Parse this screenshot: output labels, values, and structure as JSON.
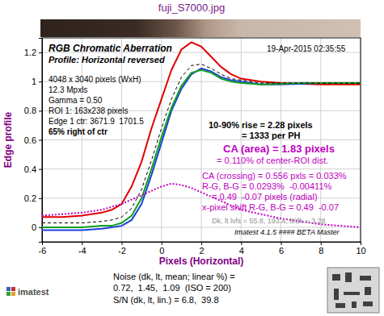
{
  "chart_data": {
    "type": "line",
    "title": "fuji_S7000.jpg",
    "x_label": "Pixels (Horizontal)",
    "y_label": "Edge profile",
    "x": [
      -6,
      -5,
      -4,
      -3,
      -2.5,
      -2,
      -1.5,
      -1,
      -0.5,
      0,
      0.5,
      1,
      1.5,
      2,
      2.5,
      3,
      3.5,
      4,
      5,
      6,
      7,
      8,
      9,
      10
    ],
    "series": [
      {
        "color": "#e00000",
        "line_style": "solid",
        "values": [
          0.07,
          0.07,
          0.08,
          0.1,
          0.12,
          0.16,
          0.28,
          0.45,
          0.68,
          0.88,
          1.08,
          1.22,
          1.27,
          1.24,
          1.17,
          1.1,
          1.05,
          1.02,
          1.0,
          0.99,
          0.985,
          0.98,
          0.98,
          0.98
        ]
      },
      {
        "color": "#2040e0",
        "line_style": "solid",
        "values": [
          -0.02,
          -0.02,
          -0.02,
          -0.01,
          0,
          0.01,
          0.05,
          0.16,
          0.36,
          0.58,
          0.8,
          0.95,
          1.05,
          1.09,
          1.07,
          1.03,
          1.01,
          1.0,
          0.98,
          0.98,
          0.985,
          0.99,
          0.99,
          0.99
        ]
      },
      {
        "color": "#10a020",
        "line_style": "solid",
        "values": [
          0,
          0,
          0,
          0.01,
          0.01,
          0.03,
          0.08,
          0.2,
          0.4,
          0.62,
          0.82,
          0.97,
          1.06,
          1.08,
          1.06,
          1.02,
          1.0,
          0.99,
          0.98,
          0.985,
          0.99,
          0.99,
          0.99,
          0.99
        ]
      },
      {
        "color": "#000000",
        "line_style": "dashed",
        "values": [
          0.03,
          0.03,
          0.03,
          0.04,
          0.05,
          0.07,
          0.13,
          0.26,
          0.46,
          0.68,
          0.88,
          1.03,
          1.11,
          1.12,
          1.09,
          1.05,
          1.02,
          1.01,
          0.99,
          0.99,
          0.99,
          0.99,
          0.99,
          0.99
        ]
      },
      {
        "color": "#c000c0",
        "line_style": "dotted",
        "values": [
          0.08,
          0.09,
          0.1,
          0.12,
          0.14,
          0.16,
          0.19,
          0.22,
          0.25,
          0.28,
          0.3,
          0.29,
          0.27,
          0.24,
          0.21,
          0.18,
          0.15,
          0.12,
          0.09,
          0.06,
          0.04,
          0.02,
          0.01,
          0
        ]
      }
    ],
    "xlim": [
      -6,
      10
    ],
    "ylim": [
      -0.1,
      1.3
    ],
    "xticks": [
      -6,
      -4,
      -2,
      0,
      2,
      4,
      6,
      8,
      10
    ],
    "yticks": [
      0,
      0.2,
      0.4,
      0.6,
      0.8,
      1,
      1.2
    ],
    "grid": true,
    "annotations": [
      "RGB Chromatic Aberration",
      "Profile: Horizontal reversed",
      "19-Apr-2015 02:35:55",
      "4048 x 3040 pixels (WxH)",
      "12.3 Mpxls",
      "Gamma = 0.50",
      "ROI 1: 163x238 pixels",
      "Edge 1 ctr: 3671.9  1701.5",
      "65% right of ctr",
      "10-90% rise = 2.28 pixels",
      "= 1333 per PH",
      "CA (area) = 1.83 pixels",
      "= 0.110% of center-ROI dist.",
      "CA (crossing) = 0.556 pxls = 0.033%",
      "R-G, B-G = 0.0293%  -0.00411%",
      "= 0.49  -0.07 pixels (radial)",
      "x-pixel shift R-G, B-G = 0.49  -0.07",
      "Dk, lt lvls = 55.8, 193.4; lt/dk = 3.28",
      "Imatest 4.1.5 #### BETA Master"
    ],
    "footer": [
      "imatest",
      "Noise (dk, lt, mean; linear %) =",
      "0.72,  1.45,  1.09  (ISO = 200)",
      "S/N (dk, lt, lin.) = 6.8,  39.8"
    ]
  }
}
